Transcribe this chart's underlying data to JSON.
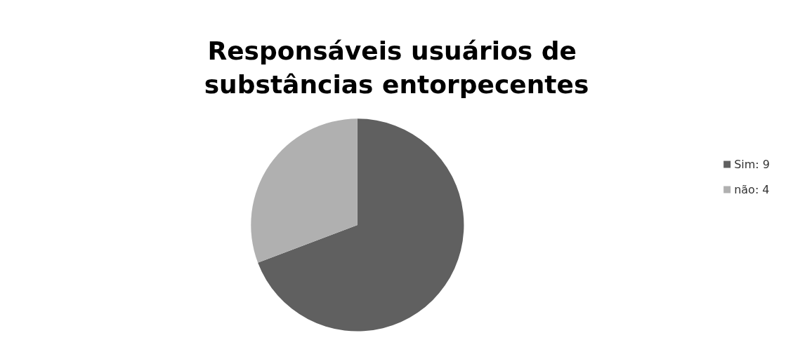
{
  "chart_data": {
    "type": "pie",
    "title": "Responsáveis usuários de substâncias entorpecentes",
    "categories": [
      "Sim: 9",
      "não: 4"
    ],
    "values": [
      9,
      4
    ],
    "colors": [
      "#606060",
      "#b0b0b0"
    ],
    "legend": "right"
  }
}
